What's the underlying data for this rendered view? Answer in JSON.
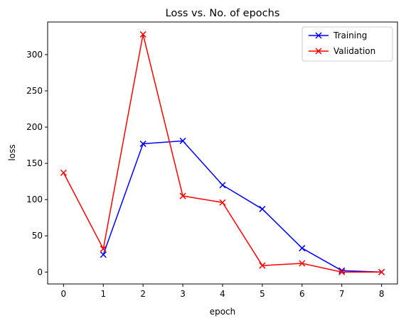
{
  "chart_data": {
    "type": "line",
    "title": "Loss vs. No. of epochs",
    "xlabel": "epoch",
    "ylabel": "loss",
    "xlim": [
      -0.4,
      8.4
    ],
    "ylim": [
      -16.4,
      345
    ],
    "x_ticks": [
      0,
      1,
      2,
      3,
      4,
      5,
      6,
      7,
      8
    ],
    "y_ticks": [
      0,
      50,
      100,
      150,
      200,
      250,
      300
    ],
    "grid": false,
    "legend_position": "top-right",
    "series": [
      {
        "name": "Training",
        "color": "#0000ff",
        "marker": "x",
        "x": [
          1,
          2,
          3,
          4,
          5,
          6,
          7,
          8
        ],
        "y": [
          24,
          177,
          181,
          120,
          87,
          33,
          2,
          0
        ]
      },
      {
        "name": "Validation",
        "color": "#ff0000",
        "marker": "x",
        "x": [
          0,
          1,
          2,
          3,
          4,
          5,
          6,
          7,
          8
        ],
        "y": [
          137,
          32,
          328,
          105,
          96,
          9,
          12,
          0,
          0
        ]
      }
    ]
  }
}
